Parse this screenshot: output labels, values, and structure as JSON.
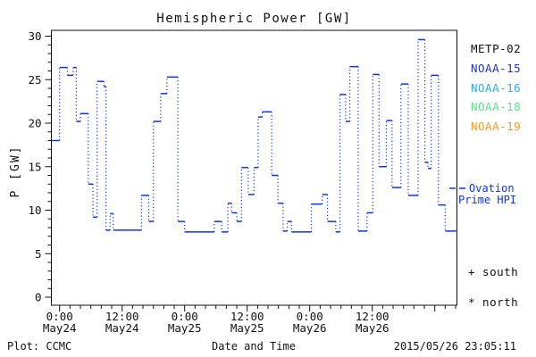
{
  "header": {
    "title": "Hemispheric Power [GW]"
  },
  "legend": {
    "items": [
      {
        "label": "METP-02",
        "color": "#111111"
      },
      {
        "label": "NOAA-15",
        "color": "#2233cc"
      },
      {
        "label": "NOAA-16",
        "color": "#29ace8"
      },
      {
        "label": "NOAA-18",
        "color": "#5ce08a"
      },
      {
        "label": "NOAA-19",
        "color": "#ff9922"
      }
    ]
  },
  "ovation": {
    "label_line1": "Ovation",
    "label_line2": "Prime HPI"
  },
  "hemisphere_markers": {
    "south": "+ south",
    "north": "* north"
  },
  "footer": {
    "plot_source": "Plot: CCMC",
    "xaxis_title": "Date and Time",
    "timestamp": "2015/05/26 23:05:11"
  },
  "chart_data": {
    "type": "line",
    "style": "step-with-dotted-connectors",
    "title": "Hemispheric Power [GW]",
    "xlabel": "Date and Time",
    "ylabel": "P [GW]",
    "ylim": [
      0,
      30
    ],
    "y_major_ticks": [
      0,
      5,
      10,
      15,
      20,
      25,
      30
    ],
    "y_minor_tick_interval": 1,
    "x_axis_range_hours": [
      -1.6,
      76.3
    ],
    "x_minor_tick_interval_hours": 2,
    "x_major_tick_interval_hours": 12,
    "x_ticks": [
      {
        "t": 0,
        "time": "0:00",
        "date": "May24"
      },
      {
        "t": 12,
        "time": "12:00",
        "date": "May24"
      },
      {
        "t": 24,
        "time": "0:00",
        "date": "May25"
      },
      {
        "t": 36,
        "time": "12:00",
        "date": "May25"
      },
      {
        "t": 48,
        "time": "0:00",
        "date": "May26"
      },
      {
        "t": 60,
        "time": "12:00",
        "date": "May26"
      }
    ],
    "grid": false,
    "legend_position": "right",
    "series": [
      {
        "name": "Ovation Prime HPI",
        "color": "#0f35e0",
        "unit": "GW",
        "time_base": "hours since 2015-05-24 00:00",
        "steps": [
          [
            -1.6,
            0,
            18.0
          ],
          [
            0,
            1.5,
            26.4
          ],
          [
            1.5,
            2.6,
            25.5
          ],
          [
            2.6,
            3.2,
            26.4
          ],
          [
            3.2,
            4.0,
            20.2
          ],
          [
            4.0,
            5.5,
            21.1
          ],
          [
            5.5,
            6.4,
            13.0
          ],
          [
            6.4,
            7.2,
            9.2
          ],
          [
            7.2,
            8.5,
            24.8
          ],
          [
            8.5,
            8.9,
            24.2
          ],
          [
            8.9,
            9.7,
            7.7
          ],
          [
            9.7,
            10.3,
            9.6
          ],
          [
            10.3,
            15.7,
            7.7
          ],
          [
            15.7,
            17.1,
            11.7
          ],
          [
            17.1,
            18.0,
            8.7
          ],
          [
            18.0,
            19.4,
            20.2
          ],
          [
            19.4,
            20.6,
            23.4
          ],
          [
            20.6,
            22.7,
            25.3
          ],
          [
            22.7,
            24.0,
            8.7
          ],
          [
            24.0,
            29.7,
            7.5
          ],
          [
            29.7,
            31.1,
            8.7
          ],
          [
            31.1,
            32.3,
            7.5
          ],
          [
            32.3,
            33.0,
            10.8
          ],
          [
            33.0,
            34.0,
            9.7
          ],
          [
            34.0,
            34.9,
            8.7
          ],
          [
            34.9,
            36.2,
            14.9
          ],
          [
            36.2,
            37.3,
            11.8
          ],
          [
            37.3,
            38.1,
            14.9
          ],
          [
            38.1,
            38.9,
            20.7
          ],
          [
            38.9,
            40.7,
            21.3
          ],
          [
            40.7,
            41.9,
            14.0
          ],
          [
            41.9,
            42.9,
            10.8
          ],
          [
            42.9,
            43.7,
            7.6
          ],
          [
            43.7,
            44.5,
            8.7
          ],
          [
            44.5,
            48.3,
            7.5
          ],
          [
            48.3,
            50.4,
            10.7
          ],
          [
            50.4,
            51.4,
            11.8
          ],
          [
            51.4,
            53.0,
            8.7
          ],
          [
            53.0,
            53.8,
            7.5
          ],
          [
            53.8,
            54.9,
            23.3
          ],
          [
            54.9,
            55.7,
            20.2
          ],
          [
            55.7,
            57.3,
            26.5
          ],
          [
            57.3,
            59.0,
            7.6
          ],
          [
            59.0,
            60.1,
            9.7
          ],
          [
            60.1,
            61.3,
            25.6
          ],
          [
            61.3,
            62.7,
            15.0
          ],
          [
            62.7,
            63.8,
            20.3
          ],
          [
            63.8,
            65.5,
            12.6
          ],
          [
            65.5,
            66.9,
            24.5
          ],
          [
            66.9,
            68.8,
            11.7
          ],
          [
            68.8,
            70.1,
            29.6
          ],
          [
            70.1,
            70.7,
            15.5
          ],
          [
            70.7,
            71.3,
            14.8
          ],
          [
            71.3,
            72.7,
            25.5
          ],
          [
            72.7,
            74.0,
            10.6
          ],
          [
            74.0,
            76.1,
            7.6
          ]
        ]
      }
    ]
  }
}
